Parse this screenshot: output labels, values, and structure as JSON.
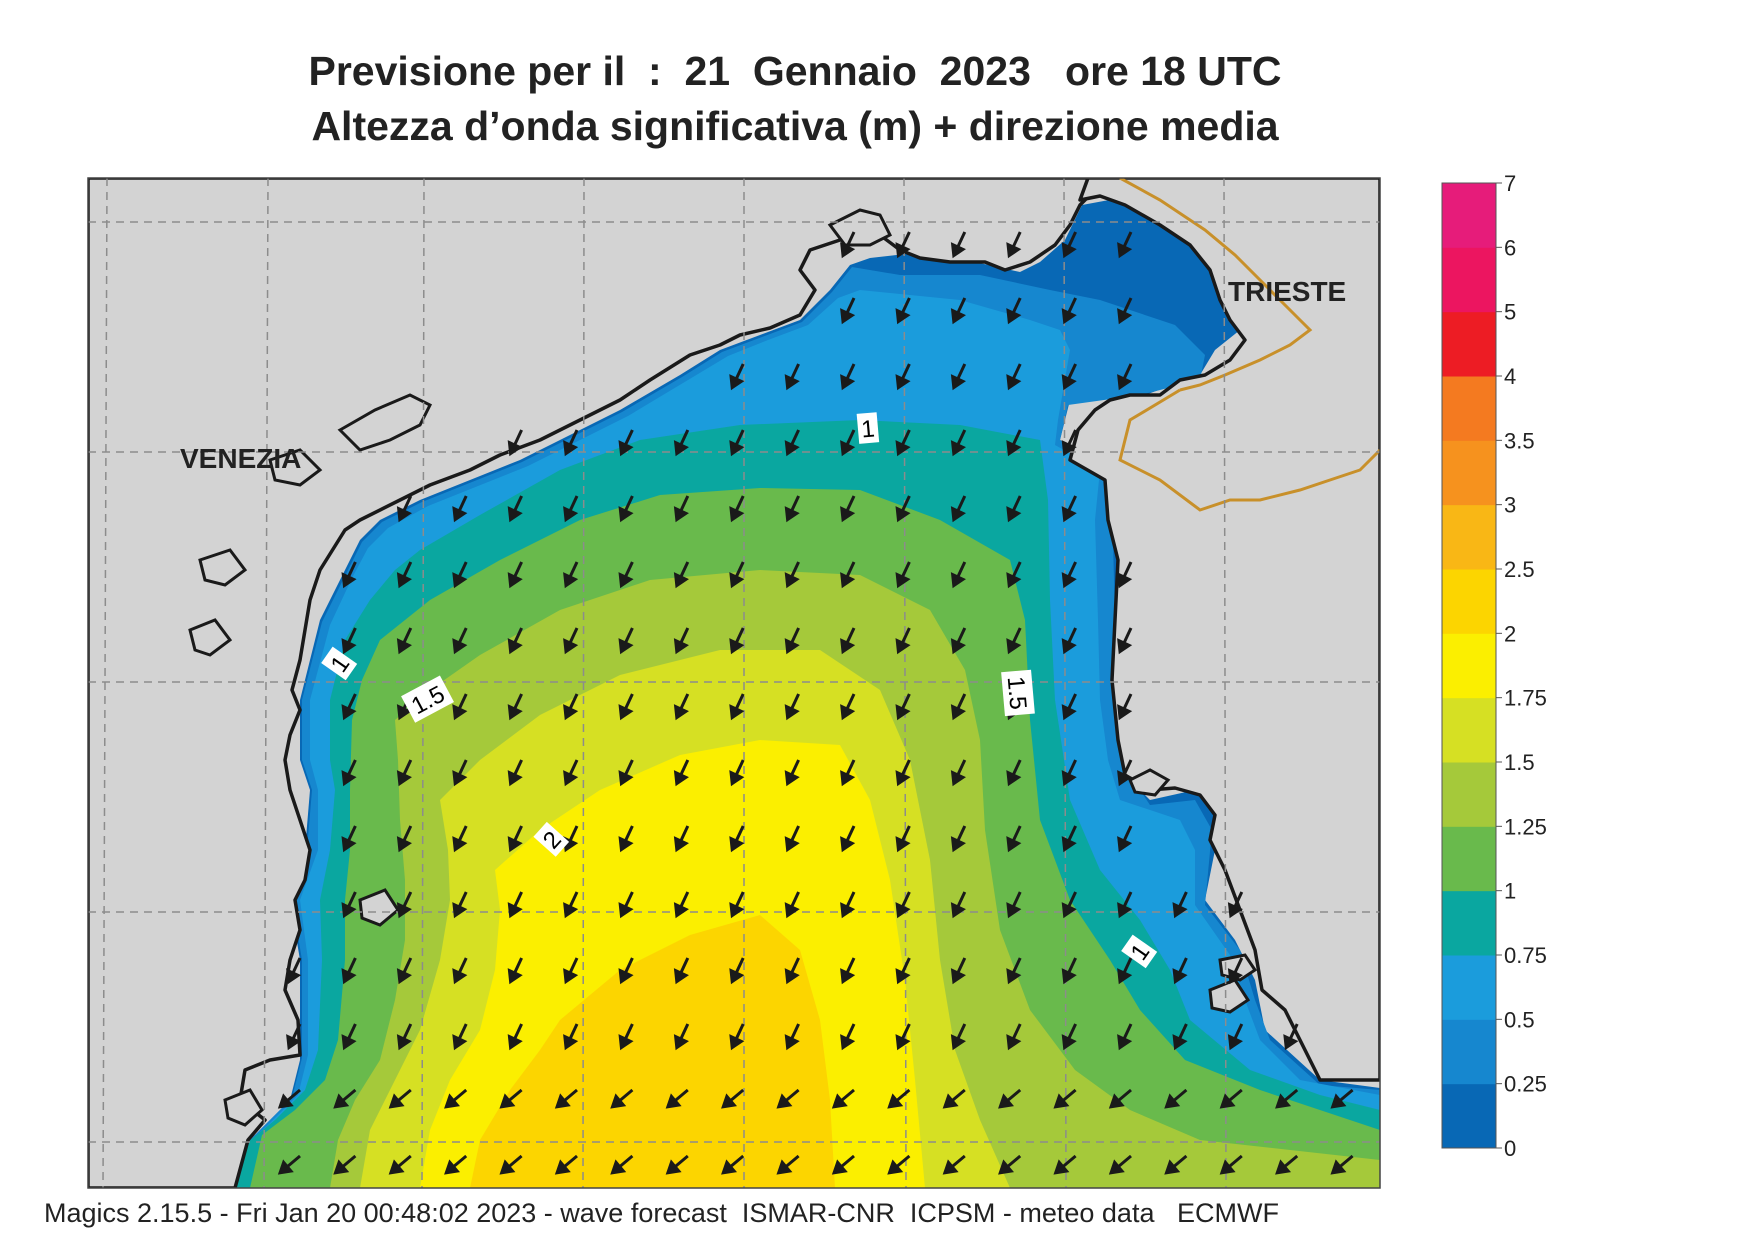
{
  "header": {
    "title_line1": "Previsione per il  :  21  Gennaio  2023   ore 18 UTC",
    "title_line2": "Altezza d’onda significativa (m) + direzione media"
  },
  "footer": {
    "text": "Magics 2.15.5 - Fri Jan 20 00:48:02 2023 - wave forecast  ISMAR-CNR  ICPSM - meteo data   ECMWF"
  },
  "map": {
    "places": [
      {
        "name": "VENEZIA"
      },
      {
        "name": "TRIESTE"
      }
    ],
    "contour_labels": [
      "1",
      "1",
      "1.5",
      "1.5",
      "2",
      "1"
    ],
    "land_color": "#d3d3d3",
    "coast_color": "#1a1a1a",
    "border_color": "#c8902a",
    "grid_color": "#8c8c8c",
    "arrow_color": "#1a1a1a",
    "arrow_direction": "south-west"
  },
  "legend": {
    "ticks": [
      "0",
      "0.25",
      "0.5",
      "0.75",
      "1",
      "1.25",
      "1.5",
      "1.75",
      "2",
      "2.5",
      "3",
      "3.5",
      "4",
      "5",
      "6",
      "7"
    ],
    "colors": [
      "#0868b5",
      "#1687cf",
      "#1b9cdc",
      "#0aa7a0",
      "#69ba4c",
      "#a5c93a",
      "#d6e023",
      "#fbef00",
      "#fcd500",
      "#f9b715",
      "#f6921e",
      "#f47a20",
      "#ed1c24",
      "#ec1560",
      "#e61c7a"
    ]
  }
}
